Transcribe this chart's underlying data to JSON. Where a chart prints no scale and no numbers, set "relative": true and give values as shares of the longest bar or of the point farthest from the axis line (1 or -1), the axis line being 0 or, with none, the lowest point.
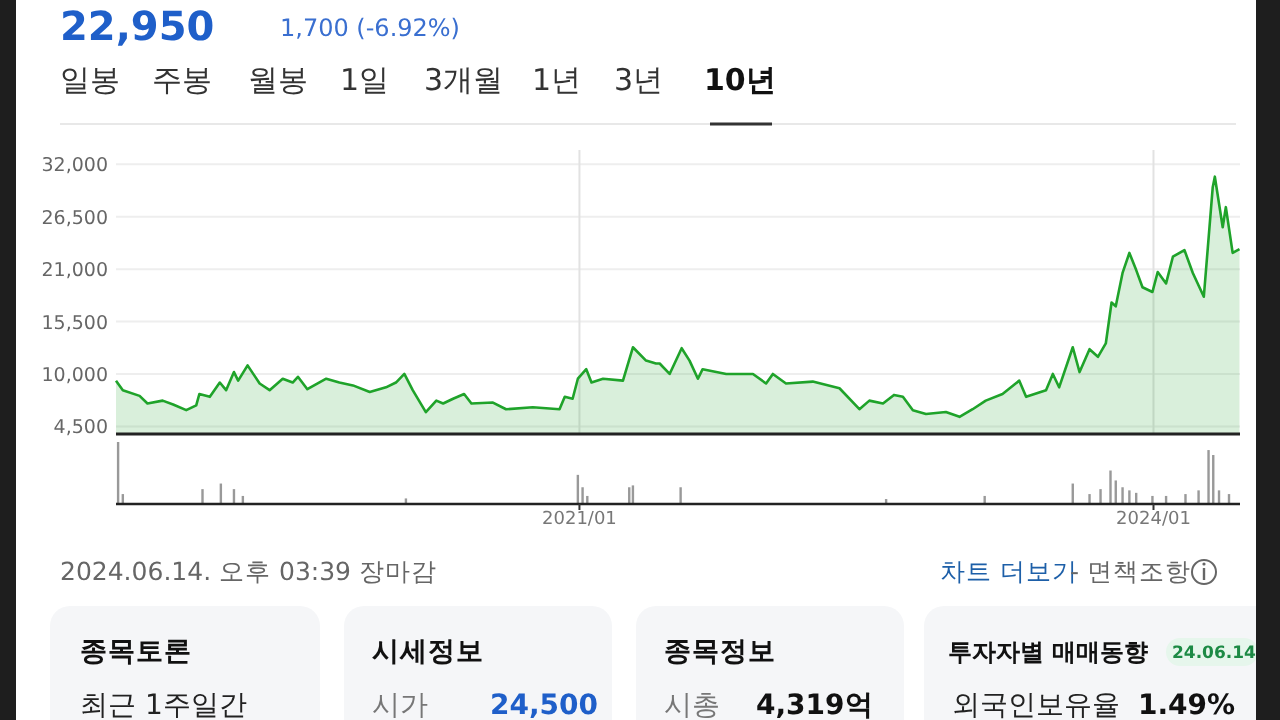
{
  "chart_data": [
    {
      "type": "area",
      "color": "#1fa32a",
      "grid": true,
      "tick_labels": "y",
      "xlim": [
        "2018-08-01",
        "2024-06-14"
      ],
      "xticks": [
        {
          "value": "2021-01",
          "label": null
        },
        {
          "value": "2024-01",
          "label": null
        }
      ],
      "ylim": [
        3700,
        33500
      ],
      "yticks": [
        {
          "value": 4500,
          "label": "4,500"
        },
        {
          "value": 10000,
          "label": "10,000"
        },
        {
          "value": 15500,
          "label": "15,500"
        },
        {
          "value": 21000,
          "label": "21,000"
        },
        {
          "value": 26500,
          "label": "26,500"
        },
        {
          "value": 32000,
          "label": "32,000"
        }
      ],
      "x": [
        "2018-08-01",
        "2018-08-14",
        "2018-09-15",
        "2018-09-30",
        "2018-10-29",
        "2018-11-18",
        "2018-12-13",
        "2019-01-01",
        "2019-01-07",
        "2019-01-27",
        "2019-02-15",
        "2019-02-27",
        "2019-03-14",
        "2019-03-22",
        "2019-04-09",
        "2019-05-02",
        "2019-05-21",
        "2019-06-15",
        "2019-07-04",
        "2019-07-14",
        "2019-08-01",
        "2019-09-06",
        "2019-10-01",
        "2019-10-27",
        "2019-11-28",
        "2019-12-29",
        "2020-01-17",
        "2020-02-02",
        "2020-02-18",
        "2020-03-14",
        "2020-04-03",
        "2020-04-16",
        "2020-05-05",
        "2020-05-26",
        "2020-06-09",
        "2020-07-20",
        "2020-08-14",
        "2020-10-04",
        "2020-11-24",
        "2020-12-04",
        "2020-12-19",
        "2020-12-29",
        "2021-01-14",
        "2021-01-24",
        "2021-02-15",
        "2021-03-25",
        "2021-04-13",
        "2021-05-08",
        "2021-05-27",
        "2021-06-03",
        "2021-06-22",
        "2021-07-15",
        "2021-07-30",
        "2021-08-15",
        "2021-08-24",
        "2021-10-08",
        "2021-11-28",
        "2021-12-23",
        "2022-01-05",
        "2022-01-30",
        "2022-03-22",
        "2022-05-12",
        "2022-06-19",
        "2022-07-08",
        "2022-08-03",
        "2022-08-24",
        "2022-09-10",
        "2022-09-29",
        "2022-10-24",
        "2022-12-01",
        "2022-12-27",
        "2023-01-21",
        "2023-02-15",
        "2023-03-19",
        "2023-04-20",
        "2023-05-03",
        "2023-06-10",
        "2023-06-23",
        "2023-07-05",
        "2023-07-31",
        "2023-08-13",
        "2023-09-01",
        "2023-09-17",
        "2023-10-02",
        "2023-10-13",
        "2023-10-21",
        "2023-11-03",
        "2023-11-16",
        "2023-11-29",
        "2023-12-11",
        "2023-12-30",
        "2024-01-09",
        "2024-01-25",
        "2024-02-07",
        "2024-02-29",
        "2024-03-16",
        "2024-04-06",
        "2024-04-23",
        "2024-04-27",
        "2024-05-12",
        "2024-05-18",
        "2024-05-31",
        "2024-06-13"
      ],
      "values": [
        9300,
        8300,
        7700,
        6900,
        7200,
        6800,
        6200,
        6700,
        7900,
        7600,
        9100,
        8300,
        10200,
        9300,
        10900,
        9000,
        8300,
        9500,
        9100,
        9700,
        8400,
        9500,
        9100,
        8800,
        8100,
        8600,
        9100,
        10000,
        8300,
        6000,
        7200,
        6900,
        7400,
        7900,
        6900,
        7000,
        6300,
        6500,
        6300,
        7600,
        7400,
        9500,
        10500,
        9100,
        9500,
        9300,
        12800,
        11400,
        11100,
        11100,
        10000,
        12700,
        11400,
        9500,
        10500,
        10000,
        10000,
        9000,
        10000,
        9000,
        9200,
        8500,
        6300,
        7200,
        6900,
        7800,
        7600,
        6200,
        5800,
        6000,
        5500,
        6300,
        7200,
        7900,
        9300,
        7600,
        8300,
        10000,
        8600,
        12800,
        10200,
        12600,
        11800,
        13200,
        17500,
        17100,
        20600,
        22700,
        20900,
        19100,
        18600,
        20700,
        19500,
        22300,
        23000,
        20600,
        18100,
        29600,
        30700,
        25400,
        27500,
        22700,
        23100
      ],
      "annotations": [
        "22,950",
        "1,700 (-6.92%)",
        "일봉",
        "주봉",
        "월봉",
        "1일",
        "3개월",
        "1년",
        "3년",
        "10년",
        "2024.06.14. 오후 03:39 장마감",
        "차트 더보기",
        "- 면책조항",
        "종목토론",
        "최근 1주일간",
        "시세정보",
        "시가",
        "24,500",
        "종목정보",
        "시총",
        "4,319억",
        "투자자별 매매동향",
        "24.06.14",
        "외국인보유율",
        "1.49%"
      ]
    },
    {
      "type": "bar",
      "relative": true,
      "color": "#999999",
      "xlim": [
        "2018-08-01",
        "2024-06-14"
      ],
      "xticks": [
        {
          "value": "2021-01",
          "label": "2021/01"
        },
        {
          "value": "2024-01",
          "label": "2024/01"
        }
      ],
      "x": [
        "2018-08-05",
        "2018-08-14",
        "2019-01-13",
        "2019-02-17",
        "2019-03-14",
        "2019-03-31",
        "2020-02-05",
        "2020-12-29",
        "2021-01-07",
        "2021-01-16",
        "2021-04-06",
        "2021-04-13",
        "2021-07-13",
        "2022-08-09",
        "2023-02-13",
        "2023-07-31",
        "2023-09-01",
        "2023-09-22",
        "2023-10-11",
        "2023-10-21",
        "2023-11-03",
        "2023-11-16",
        "2023-11-29",
        "2023-12-30",
        "2024-01-25",
        "2024-03-02",
        "2024-03-27",
        "2024-04-15",
        "2024-04-24",
        "2024-05-05",
        "2024-05-24"
      ],
      "values": [
        1,
        0.16,
        0.24,
        0.33,
        0.24,
        0.13,
        0.09,
        0.47,
        0.27,
        0.13,
        0.27,
        0.3,
        0.27,
        0.08,
        0.13,
        0.33,
        0.16,
        0.24,
        0.54,
        0.38,
        0.27,
        0.22,
        0.18,
        0.13,
        0.13,
        0.16,
        0.22,
        0.87,
        0.79,
        0.22,
        0.16
      ]
    }
  ]
}
